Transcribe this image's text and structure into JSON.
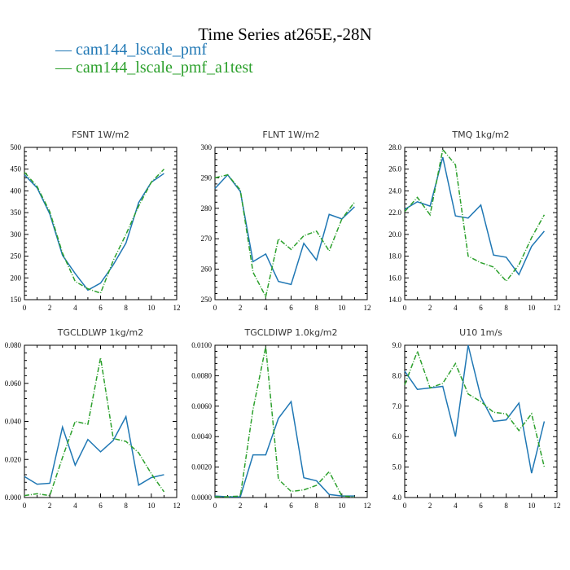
{
  "title": "Time Series at265E,-28N",
  "legend": [
    {
      "label": "cam144_lscale_pmf",
      "color": "#1f77b4"
    },
    {
      "label": "cam144_lscale_pmf_a1test",
      "color": "#2ca02c"
    }
  ],
  "chart_data": [
    {
      "type": "line",
      "title": "FSNT  1W/m2",
      "x": [
        0,
        1,
        2,
        3,
        4,
        5,
        6,
        7,
        8,
        9,
        10,
        11
      ],
      "xlim": [
        0,
        12
      ],
      "xticks": [
        "0",
        "2",
        "4",
        "6",
        "8",
        "10",
        "12"
      ],
      "ylim": [
        150,
        500
      ],
      "yticks": [
        "150",
        "200",
        "250",
        "300",
        "350",
        "400",
        "450",
        "500"
      ],
      "series": [
        {
          "name": "cam144_lscale_pmf",
          "values": [
            437,
            407,
            347,
            252,
            210,
            172,
            188,
            230,
            280,
            373,
            420,
            440
          ]
        },
        {
          "name": "cam144_lscale_pmf_a1test",
          "values": [
            443,
            410,
            352,
            257,
            192,
            175,
            165,
            240,
            300,
            365,
            420,
            450
          ]
        }
      ]
    },
    {
      "type": "line",
      "title": "FLNT  1W/m2",
      "x": [
        0,
        1,
        2,
        3,
        4,
        5,
        6,
        7,
        8,
        9,
        10,
        11
      ],
      "xlim": [
        0,
        12
      ],
      "xticks": [
        "0",
        "2",
        "4",
        "6",
        "8",
        "10",
        "12"
      ],
      "ylim": [
        250,
        300
      ],
      "yticks": [
        "250",
        "260",
        "270",
        "280",
        "290",
        "300"
      ],
      "series": [
        {
          "name": "cam144_lscale_pmf",
          "values": [
            286.5,
            291,
            285.5,
            262.5,
            265,
            256,
            255,
            268.5,
            263,
            278,
            276.5,
            280.5
          ]
        },
        {
          "name": "cam144_lscale_pmf_a1test",
          "values": [
            290,
            291,
            286,
            259,
            251,
            270,
            266.5,
            271,
            272.5,
            266,
            276.5,
            282
          ]
        }
      ]
    },
    {
      "type": "line",
      "title": "TMQ  1kg/m2",
      "x": [
        0,
        1,
        2,
        3,
        4,
        5,
        6,
        7,
        8,
        9,
        10,
        11
      ],
      "xlim": [
        0,
        12
      ],
      "xticks": [
        "0",
        "2",
        "4",
        "6",
        "8",
        "10",
        "12"
      ],
      "ylim": [
        14,
        28
      ],
      "yticks": [
        "14.0",
        "16.0",
        "18.0",
        "20.0",
        "22.0",
        "24.0",
        "26.0",
        "28.0"
      ],
      "series": [
        {
          "name": "cam144_lscale_pmf",
          "values": [
            22.3,
            23.0,
            22.6,
            27.1,
            21.7,
            21.5,
            22.7,
            18.1,
            17.9,
            16.3,
            18.9,
            20.3
          ]
        },
        {
          "name": "cam144_lscale_pmf_a1test",
          "values": [
            22.1,
            23.4,
            21.8,
            27.8,
            26.4,
            18.0,
            17.4,
            17.0,
            15.7,
            17.2,
            19.7,
            21.8
          ]
        }
      ]
    },
    {
      "type": "line",
      "title": "TGCLDLWP  1kg/m2",
      "x": [
        0,
        1,
        2,
        3,
        4,
        5,
        6,
        7,
        8,
        9,
        10,
        11
      ],
      "xlim": [
        0,
        12
      ],
      "xticks": [
        "0",
        "2",
        "4",
        "6",
        "8",
        "10",
        "12"
      ],
      "ylim": [
        0,
        0.08
      ],
      "yticks": [
        "0.000",
        "0.020",
        "0.040",
        "0.060",
        "0.080"
      ],
      "series": [
        {
          "name": "cam144_lscale_pmf",
          "values": [
            0.011,
            0.007,
            0.0075,
            0.037,
            0.017,
            0.0305,
            0.024,
            0.03,
            0.0425,
            0.0065,
            0.0105,
            0.012
          ]
        },
        {
          "name": "cam144_lscale_pmf_a1test",
          "values": [
            0.001,
            0.002,
            0.001,
            0.021,
            0.04,
            0.0385,
            0.0735,
            0.031,
            0.0295,
            0.0235,
            0.0125,
            0.003
          ]
        }
      ]
    },
    {
      "type": "line",
      "title": "TGCLDIWP  1.0kg/m2",
      "x": [
        0,
        1,
        2,
        3,
        4,
        5,
        6,
        7,
        8,
        9,
        10,
        11
      ],
      "xlim": [
        0,
        12
      ],
      "xticks": [
        "0",
        "2",
        "4",
        "6",
        "8",
        "10",
        "12"
      ],
      "ylim": [
        0,
        0.01
      ],
      "yticks": [
        "0.0000",
        "0.0020",
        "0.0040",
        "0.0060",
        "0.0080",
        "0.0100"
      ],
      "series": [
        {
          "name": "cam144_lscale_pmf",
          "values": [
            0.0001,
            5e-05,
            5e-05,
            0.0028,
            0.0028,
            0.0052,
            0.0063,
            0.0013,
            0.0011,
            0.0002,
            0.0001,
            0.0001
          ]
        },
        {
          "name": "cam144_lscale_pmf_a1test",
          "values": [
            5e-05,
            5e-05,
            0.0001,
            0.0058,
            0.0099,
            0.0012,
            0.0004,
            0.0005,
            0.0008,
            0.0017,
            0.0001,
            5e-05
          ]
        }
      ]
    },
    {
      "type": "line",
      "title": "U10  1m/s",
      "x": [
        0,
        1,
        2,
        3,
        4,
        5,
        6,
        7,
        8,
        9,
        10,
        11
      ],
      "xlim": [
        0,
        12
      ],
      "xticks": [
        "0",
        "2",
        "4",
        "6",
        "8",
        "10",
        "12"
      ],
      "ylim": [
        4,
        9
      ],
      "yticks": [
        "4.0",
        "5.0",
        "6.0",
        "7.0",
        "8.0",
        "9.0"
      ],
      "series": [
        {
          "name": "cam144_lscale_pmf",
          "values": [
            8.15,
            7.55,
            7.6,
            7.65,
            6.0,
            9.0,
            7.3,
            6.5,
            6.55,
            7.1,
            4.8,
            6.5
          ]
        },
        {
          "name": "cam144_lscale_pmf_a1test",
          "values": [
            7.7,
            8.8,
            7.6,
            7.75,
            8.4,
            7.4,
            7.15,
            6.8,
            6.75,
            6.2,
            6.75,
            5.0
          ]
        }
      ]
    }
  ]
}
